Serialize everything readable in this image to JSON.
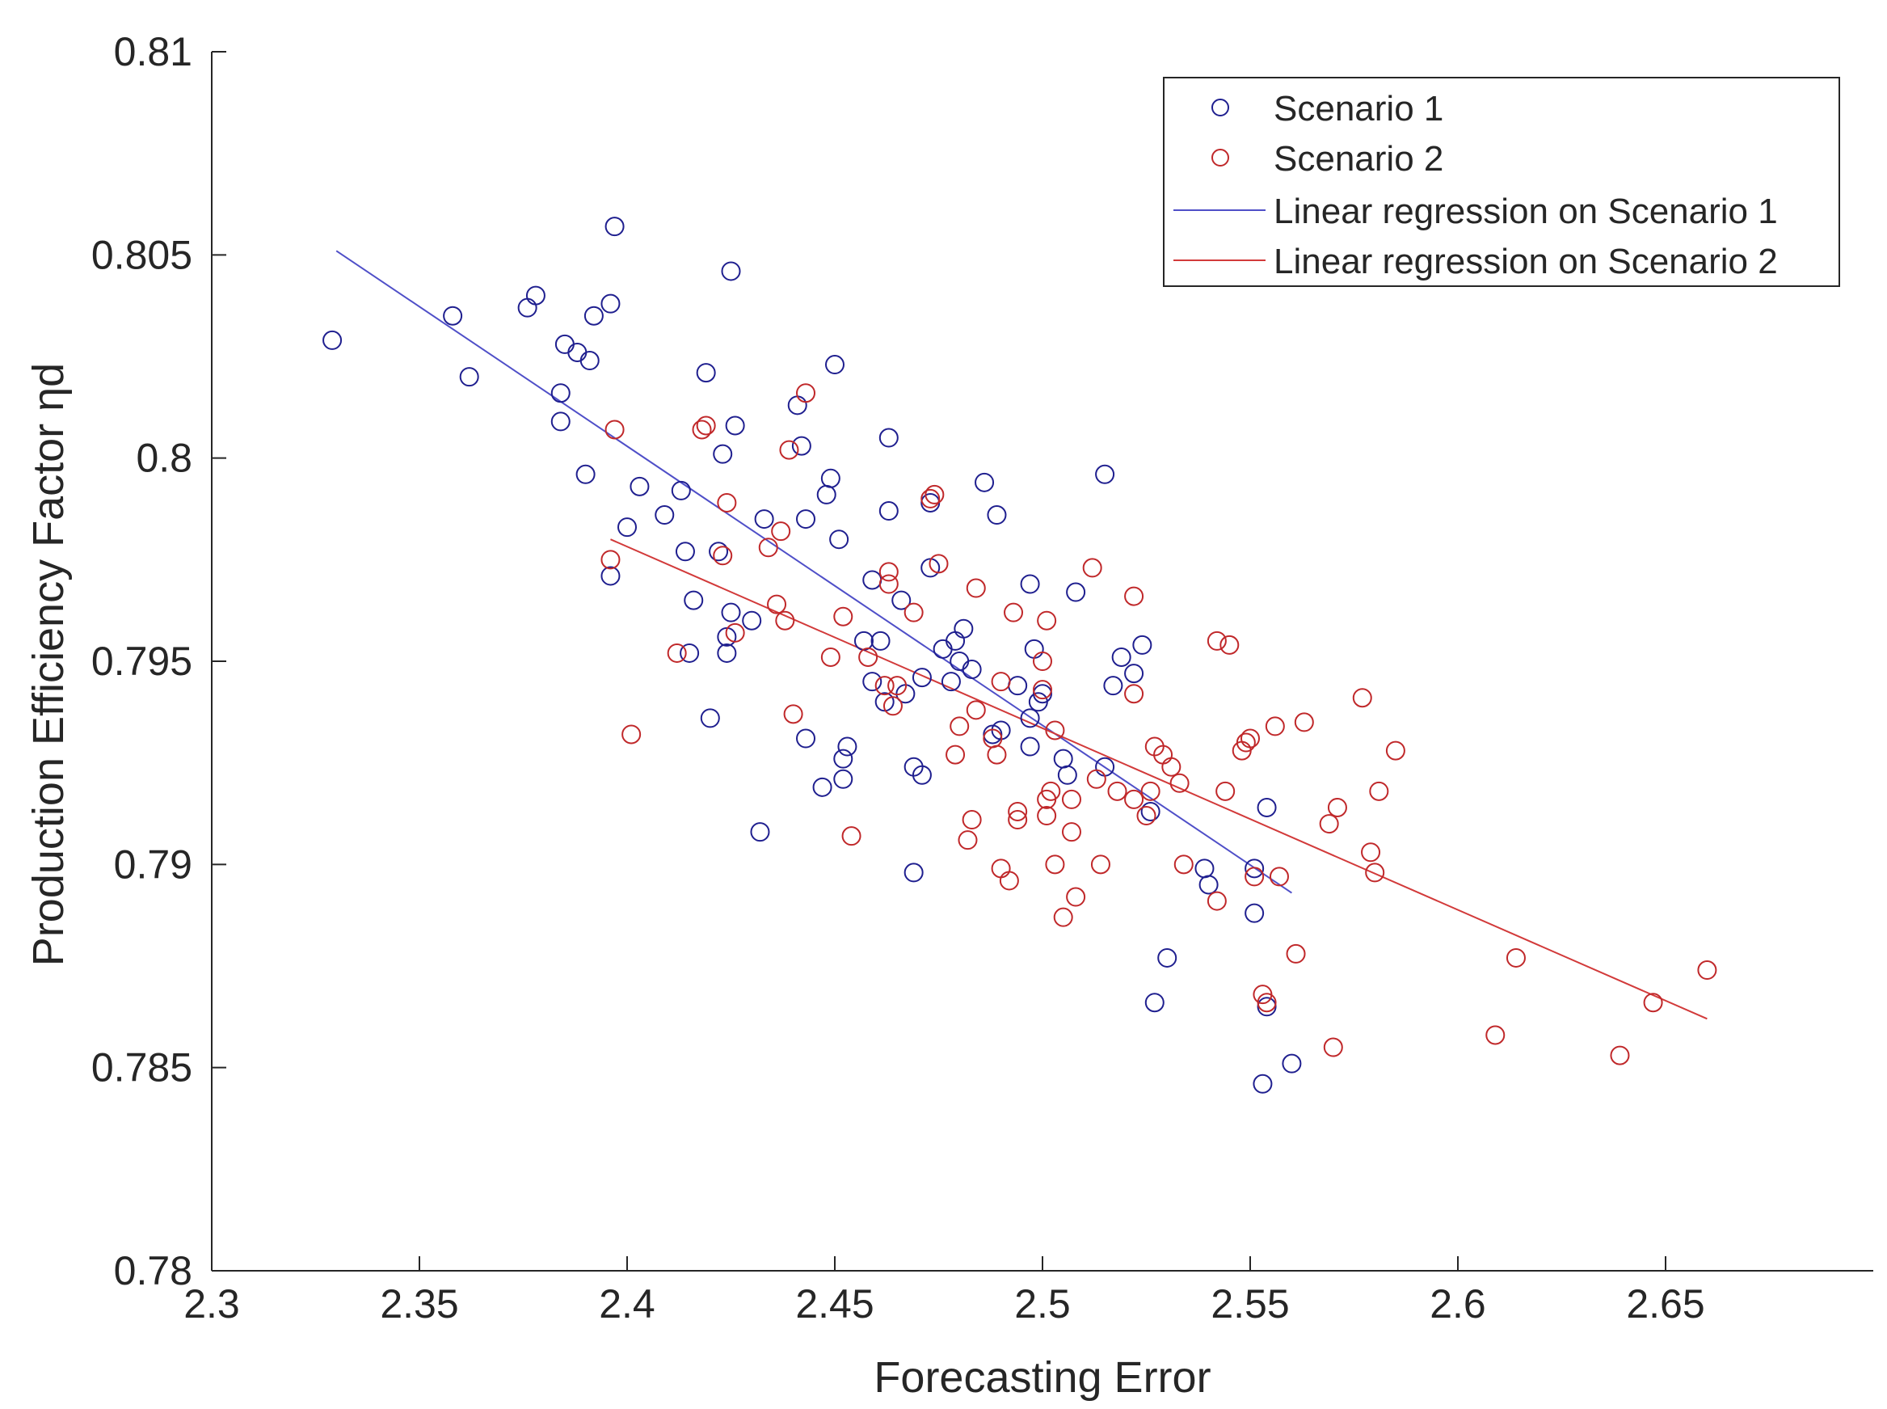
{
  "chart_data": {
    "type": "scatter",
    "title": "",
    "xlabel": "Forecasting Error",
    "ylabel": "Production Efficiency Factor ηd",
    "xlim": [
      2.3,
      2.7
    ],
    "ylim": [
      0.78,
      0.81
    ],
    "xticks": [
      "2.3",
      "2.35",
      "2.4",
      "2.45",
      "2.5",
      "2.55",
      "2.6",
      "2.65"
    ],
    "yticks": [
      "0.78",
      "0.785",
      "0.79",
      "0.795",
      "0.8",
      "0.805",
      "0.81"
    ],
    "legend_position": "top-right",
    "legend": [
      {
        "label": "Scenario 1",
        "marker": "circle",
        "color": "#1f1f8f"
      },
      {
        "label": "Scenario 2",
        "marker": "circle",
        "color": "#c0282a"
      },
      {
        "label": "Linear regression on Scenario 1",
        "marker": "line",
        "color": "#4f4fc8"
      },
      {
        "label": "Linear regression on Scenario 2",
        "marker": "line",
        "color": "#d23a3a"
      }
    ],
    "series": [
      {
        "name": "Scenario 1",
        "color": "#1f1f8f",
        "points": [
          [
            2.329,
            0.8029
          ],
          [
            2.358,
            0.8035
          ],
          [
            2.362,
            0.802
          ],
          [
            2.376,
            0.8037
          ],
          [
            2.378,
            0.804
          ],
          [
            2.384,
            0.8016
          ],
          [
            2.385,
            0.8028
          ],
          [
            2.384,
            0.8009
          ],
          [
            2.388,
            0.8026
          ],
          [
            2.391,
            0.8024
          ],
          [
            2.392,
            0.8035
          ],
          [
            2.396,
            0.8038
          ],
          [
            2.397,
            0.8057
          ],
          [
            2.39,
            0.7996
          ],
          [
            2.396,
            0.7971
          ],
          [
            2.4,
            0.7983
          ],
          [
            2.403,
            0.7993
          ],
          [
            2.409,
            0.7986
          ],
          [
            2.413,
            0.7992
          ],
          [
            2.414,
            0.7977
          ],
          [
            2.416,
            0.7965
          ],
          [
            2.415,
            0.7952
          ],
          [
            2.42,
            0.7936
          ],
          [
            2.419,
            0.8021
          ],
          [
            2.423,
            0.8001
          ],
          [
            2.424,
            0.7956
          ],
          [
            2.425,
            0.8046
          ],
          [
            2.425,
            0.7962
          ],
          [
            2.426,
            0.8008
          ],
          [
            2.424,
            0.7952
          ],
          [
            2.422,
            0.7977
          ],
          [
            2.43,
            0.796
          ],
          [
            2.432,
            0.7908
          ],
          [
            2.433,
            0.7985
          ],
          [
            2.441,
            0.8013
          ],
          [
            2.442,
            0.8003
          ],
          [
            2.443,
            0.7985
          ],
          [
            2.443,
            0.7931
          ],
          [
            2.447,
            0.7919
          ],
          [
            2.448,
            0.7991
          ],
          [
            2.449,
            0.7995
          ],
          [
            2.45,
            0.8023
          ],
          [
            2.451,
            0.798
          ],
          [
            2.452,
            0.7926
          ],
          [
            2.452,
            0.7921
          ],
          [
            2.453,
            0.7929
          ],
          [
            2.457,
            0.7955
          ],
          [
            2.459,
            0.797
          ],
          [
            2.459,
            0.7945
          ],
          [
            2.461,
            0.7955
          ],
          [
            2.462,
            0.794
          ],
          [
            2.463,
            0.8005
          ],
          [
            2.463,
            0.7987
          ],
          [
            2.466,
            0.7965
          ],
          [
            2.467,
            0.7942
          ],
          [
            2.469,
            0.7924
          ],
          [
            2.469,
            0.7898
          ],
          [
            2.471,
            0.7946
          ],
          [
            2.471,
            0.7922
          ],
          [
            2.473,
            0.7989
          ],
          [
            2.473,
            0.7973
          ],
          [
            2.476,
            0.7953
          ],
          [
            2.478,
            0.7945
          ],
          [
            2.479,
            0.7955
          ],
          [
            2.48,
            0.795
          ],
          [
            2.481,
            0.7958
          ],
          [
            2.483,
            0.7948
          ],
          [
            2.486,
            0.7994
          ],
          [
            2.488,
            0.7932
          ],
          [
            2.489,
            0.7986
          ],
          [
            2.49,
            0.7933
          ],
          [
            2.494,
            0.7944
          ],
          [
            2.497,
            0.7969
          ],
          [
            2.497,
            0.7936
          ],
          [
            2.497,
            0.7929
          ],
          [
            2.498,
            0.7953
          ],
          [
            2.499,
            0.794
          ],
          [
            2.5,
            0.7942
          ],
          [
            2.505,
            0.7926
          ],
          [
            2.506,
            0.7922
          ],
          [
            2.508,
            0.7967
          ],
          [
            2.515,
            0.7996
          ],
          [
            2.515,
            0.7924
          ],
          [
            2.517,
            0.7944
          ],
          [
            2.519,
            0.7951
          ],
          [
            2.522,
            0.7947
          ],
          [
            2.524,
            0.7954
          ],
          [
            2.526,
            0.7913
          ],
          [
            2.527,
            0.7866
          ],
          [
            2.53,
            0.7877
          ],
          [
            2.539,
            0.7899
          ],
          [
            2.54,
            0.7895
          ],
          [
            2.551,
            0.7899
          ],
          [
            2.551,
            0.7888
          ],
          [
            2.553,
            0.7846
          ],
          [
            2.554,
            0.7865
          ],
          [
            2.554,
            0.7914
          ],
          [
            2.56,
            0.7851
          ]
        ]
      },
      {
        "name": "Scenario 2",
        "color": "#c0282a",
        "points": [
          [
            2.396,
            0.7975
          ],
          [
            2.397,
            0.8007
          ],
          [
            2.401,
            0.7932
          ],
          [
            2.412,
            0.7952
          ],
          [
            2.418,
            0.8007
          ],
          [
            2.419,
            0.8008
          ],
          [
            2.423,
            0.7976
          ],
          [
            2.424,
            0.7989
          ],
          [
            2.426,
            0.7957
          ],
          [
            2.434,
            0.7978
          ],
          [
            2.436,
            0.7964
          ],
          [
            2.437,
            0.7982
          ],
          [
            2.438,
            0.796
          ],
          [
            2.439,
            0.8002
          ],
          [
            2.44,
            0.7937
          ],
          [
            2.443,
            0.8016
          ],
          [
            2.449,
            0.7951
          ],
          [
            2.452,
            0.7961
          ],
          [
            2.454,
            0.7907
          ],
          [
            2.458,
            0.7951
          ],
          [
            2.462,
            0.7944
          ],
          [
            2.463,
            0.7972
          ],
          [
            2.463,
            0.7969
          ],
          [
            2.464,
            0.7939
          ],
          [
            2.465,
            0.7944
          ],
          [
            2.469,
            0.7962
          ],
          [
            2.473,
            0.799
          ],
          [
            2.474,
            0.7991
          ],
          [
            2.475,
            0.7974
          ],
          [
            2.479,
            0.7927
          ],
          [
            2.48,
            0.7934
          ],
          [
            2.482,
            0.7906
          ],
          [
            2.483,
            0.7911
          ],
          [
            2.484,
            0.7968
          ],
          [
            2.484,
            0.7938
          ],
          [
            2.488,
            0.7931
          ],
          [
            2.489,
            0.7927
          ],
          [
            2.49,
            0.7945
          ],
          [
            2.49,
            0.7899
          ],
          [
            2.492,
            0.7896
          ],
          [
            2.493,
            0.7962
          ],
          [
            2.494,
            0.7913
          ],
          [
            2.494,
            0.7911
          ],
          [
            2.5,
            0.795
          ],
          [
            2.501,
            0.796
          ],
          [
            2.5,
            0.7943
          ],
          [
            2.501,
            0.7916
          ],
          [
            2.501,
            0.7912
          ],
          [
            2.502,
            0.7918
          ],
          [
            2.503,
            0.7933
          ],
          [
            2.503,
            0.79
          ],
          [
            2.505,
            0.7887
          ],
          [
            2.507,
            0.7908
          ],
          [
            2.507,
            0.7916
          ],
          [
            2.508,
            0.7892
          ],
          [
            2.512,
            0.7973
          ],
          [
            2.513,
            0.7921
          ],
          [
            2.514,
            0.79
          ],
          [
            2.518,
            0.7918
          ],
          [
            2.522,
            0.7942
          ],
          [
            2.522,
            0.7966
          ],
          [
            2.522,
            0.7916
          ],
          [
            2.525,
            0.7912
          ],
          [
            2.526,
            0.7918
          ],
          [
            2.527,
            0.7929
          ],
          [
            2.529,
            0.7927
          ],
          [
            2.531,
            0.7924
          ],
          [
            2.533,
            0.792
          ],
          [
            2.534,
            0.79
          ],
          [
            2.542,
            0.7891
          ],
          [
            2.542,
            0.7955
          ],
          [
            2.544,
            0.7918
          ],
          [
            2.545,
            0.7954
          ],
          [
            2.548,
            0.7928
          ],
          [
            2.549,
            0.793
          ],
          [
            2.55,
            0.7931
          ],
          [
            2.551,
            0.7897
          ],
          [
            2.553,
            0.7868
          ],
          [
            2.554,
            0.7866
          ],
          [
            2.556,
            0.7934
          ],
          [
            2.557,
            0.7897
          ],
          [
            2.561,
            0.7878
          ],
          [
            2.563,
            0.7935
          ],
          [
            2.569,
            0.791
          ],
          [
            2.57,
            0.7855
          ],
          [
            2.571,
            0.7914
          ],
          [
            2.577,
            0.7941
          ],
          [
            2.579,
            0.7903
          ],
          [
            2.58,
            0.7898
          ],
          [
            2.581,
            0.7918
          ],
          [
            2.585,
            0.7928
          ],
          [
            2.609,
            0.7858
          ],
          [
            2.614,
            0.7877
          ],
          [
            2.639,
            0.7853
          ],
          [
            2.647,
            0.7866
          ],
          [
            2.66,
            0.7874
          ]
        ]
      }
    ],
    "regressions": [
      {
        "name": "Linear regression on Scenario 1",
        "color": "#4f4fc8",
        "x": [
          2.33,
          2.56
        ],
        "y": [
          0.8051,
          0.7893
        ]
      },
      {
        "name": "Linear regression on Scenario 2",
        "color": "#d23a3a",
        "x": [
          2.396,
          2.66
        ],
        "y": [
          0.798,
          0.7862
        ]
      }
    ]
  }
}
